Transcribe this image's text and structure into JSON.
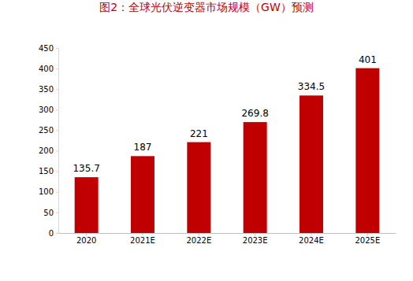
{
  "chart_data": {
    "type": "bar",
    "title": "图2：全球光伏逆变器市场规模（GW）预测",
    "categories": [
      "2020",
      "2021E",
      "2022E",
      "2023E",
      "2024E",
      "2025E"
    ],
    "values": [
      135.7,
      187,
      221,
      269.8,
      334.5,
      401
    ],
    "color": "#c00000",
    "ylim": [
      0,
      450
    ],
    "yticks": [
      0,
      50,
      100,
      150,
      200,
      250,
      300,
      350,
      400,
      450
    ],
    "grid": false,
    "data_labels": true
  }
}
